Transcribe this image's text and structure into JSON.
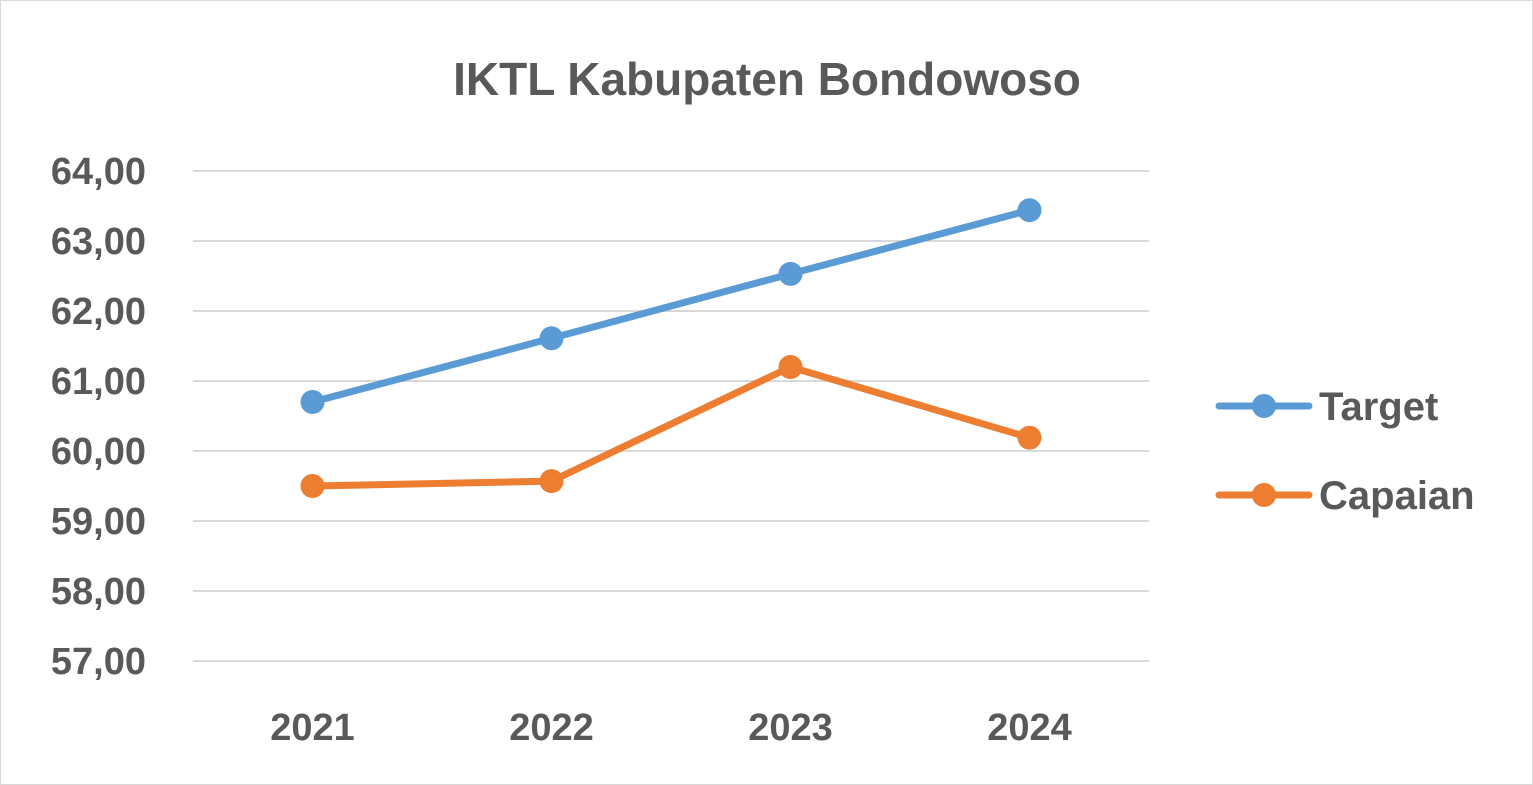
{
  "chart_data": {
    "type": "line",
    "title": "IKTL Kabupaten Bondowoso",
    "categories": [
      "2021",
      "2022",
      "2023",
      "2024"
    ],
    "series": [
      {
        "name": "Target",
        "values": [
          60.7,
          61.61,
          62.53,
          63.44
        ],
        "color": "#5b9bd5"
      },
      {
        "name": "Capaian",
        "values": [
          59.5,
          59.57,
          61.2,
          60.19
        ],
        "color": "#ed7d31"
      }
    ],
    "ylim": [
      57,
      64
    ],
    "y_ticks": [
      "57,00",
      "58,00",
      "59,00",
      "60,00",
      "61,00",
      "62,00",
      "63,00",
      "64,00"
    ],
    "grid": true,
    "legend_position": "right"
  }
}
